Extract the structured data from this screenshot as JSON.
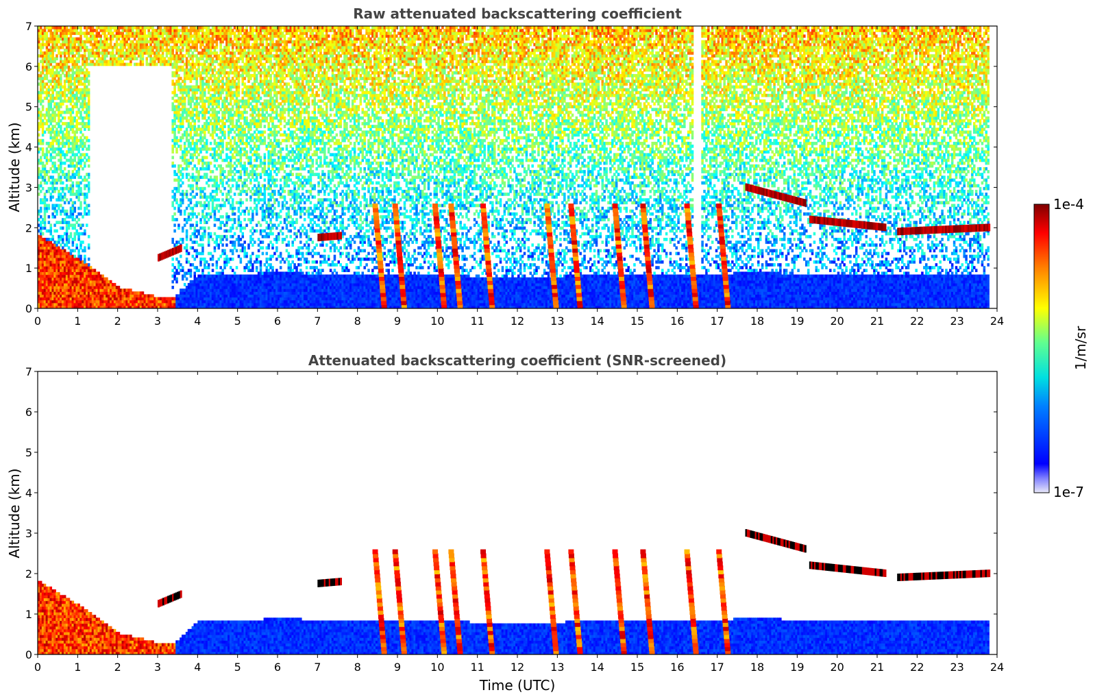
{
  "chart_data": [
    {
      "type": "heatmap",
      "title": "Raw attenuated backscattering coefficient",
      "xlabel": "",
      "ylabel": "Altitude (km)",
      "xlim": [
        0,
        24
      ],
      "ylim": [
        0,
        7
      ],
      "xticks": [
        "0",
        "1",
        "2",
        "3",
        "4",
        "5",
        "6",
        "7",
        "8",
        "9",
        "10",
        "11",
        "12",
        "13",
        "14",
        "15",
        "16",
        "17",
        "18",
        "19",
        "20",
        "21",
        "22",
        "23",
        "24"
      ],
      "yticks": [
        "0",
        "1",
        "2",
        "3",
        "4",
        "5",
        "6",
        "7"
      ],
      "data_end_hour": 23.8,
      "colormap": "jet",
      "screened": false,
      "features": {
        "boundary_layer_top_km": [
          [
            0,
            1.8
          ],
          [
            1,
            1.2
          ],
          [
            2,
            0.5
          ],
          [
            3,
            0.25
          ],
          [
            3.4,
            0.25
          ],
          [
            4,
            0.8
          ],
          [
            6,
            0.85
          ],
          [
            9,
            0.8
          ],
          [
            12,
            0.75
          ],
          [
            15,
            0.8
          ],
          [
            18,
            0.85
          ],
          [
            21,
            0.8
          ],
          [
            23.8,
            0.8
          ]
        ],
        "cloud_layers": [
          {
            "start": 3.0,
            "end": 3.6,
            "altitude_km": [
              1.25,
              1.5
            ]
          },
          {
            "start": 7.0,
            "end": 7.6,
            "altitude_km": [
              1.75,
              1.8
            ]
          },
          {
            "start": 17.7,
            "end": 19.2,
            "altitude_km": [
              3.0,
              2.6
            ]
          },
          {
            "start": 19.3,
            "end": 21.2,
            "altitude_km": [
              2.2,
              2.0
            ]
          },
          {
            "start": 21.5,
            "end": 23.8,
            "altitude_km": [
              1.9,
              2.0
            ]
          }
        ],
        "precipitation_streaks_hours": [
          8.6,
          9.1,
          10.1,
          10.5,
          11.3,
          12.9,
          13.5,
          14.6,
          15.3,
          16.4,
          17.2
        ]
      }
    },
    {
      "type": "heatmap",
      "title": "Attenuated backscattering coefficient (SNR-screened)",
      "xlabel": "Time (UTC)",
      "ylabel": "Altitude (km)",
      "xlim": [
        0,
        24
      ],
      "ylim": [
        0,
        7
      ],
      "xticks": [
        "0",
        "1",
        "2",
        "3",
        "4",
        "5",
        "6",
        "7",
        "8",
        "9",
        "10",
        "11",
        "12",
        "13",
        "14",
        "15",
        "16",
        "17",
        "18",
        "19",
        "20",
        "21",
        "22",
        "23",
        "24"
      ],
      "yticks": [
        "0",
        "1",
        "2",
        "3",
        "4",
        "5",
        "6",
        "7"
      ],
      "data_end_hour": 23.8,
      "colormap": "jet",
      "screened": true
    }
  ],
  "colorbar": {
    "label": "1/m/sr",
    "max_label": "1e-4",
    "min_label": "1e-7",
    "scale": "log",
    "range": [
      1e-07,
      0.0001
    ]
  }
}
